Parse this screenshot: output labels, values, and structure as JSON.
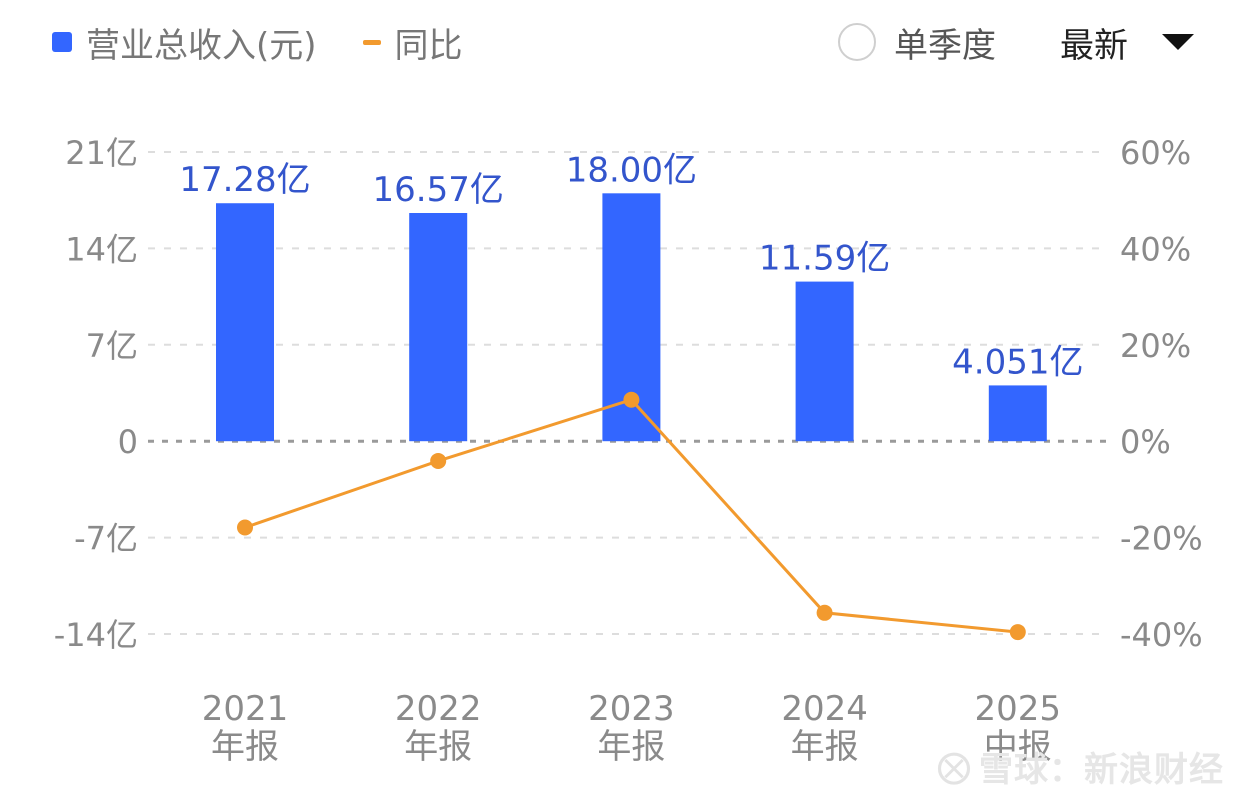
{
  "legend": {
    "bar_label": "营业总收入(元)",
    "line_label": "同比",
    "bar_color": "#3366ff",
    "line_color": "#f29a2e"
  },
  "controls": {
    "single_quarter_label": "单季度",
    "period_select_value": "最新"
  },
  "watermark": {
    "logo_icon": "snowball-logo-icon",
    "text": "雪球：新浪财经"
  },
  "chart_data": {
    "type": "bar",
    "categories": [
      [
        "2021",
        "年报"
      ],
      [
        "2022",
        "年报"
      ],
      [
        "2023",
        "年报"
      ],
      [
        "2024",
        "年报"
      ],
      [
        "2025",
        "中报"
      ]
    ],
    "series": [
      {
        "name": "营业总收入(元)",
        "type": "bar",
        "axis": "left",
        "values": [
          17.28,
          16.57,
          18.0,
          11.59,
          4.051
        ],
        "data_labels": [
          "17.28亿",
          "16.57亿",
          "18.00亿",
          "11.59亿",
          "4.051亿"
        ]
      },
      {
        "name": "同比",
        "type": "line",
        "axis": "right",
        "values": [
          -17.9,
          -4.1,
          8.6,
          -35.6,
          -39.6
        ]
      }
    ],
    "y_left": {
      "ylim": [
        -14,
        21
      ],
      "ticks": [
        21,
        14,
        7,
        0,
        -7,
        -14
      ],
      "tick_labels": [
        "21亿",
        "14亿",
        "7亿",
        "0",
        "-7亿",
        "-14亿"
      ]
    },
    "y_right": {
      "ylim": [
        -40,
        60
      ],
      "ticks": [
        60,
        40,
        20,
        0,
        -20,
        -40
      ],
      "tick_labels": [
        "60%",
        "40%",
        "20%",
        "0%",
        "-20%",
        "-40%"
      ]
    },
    "grid": true
  }
}
